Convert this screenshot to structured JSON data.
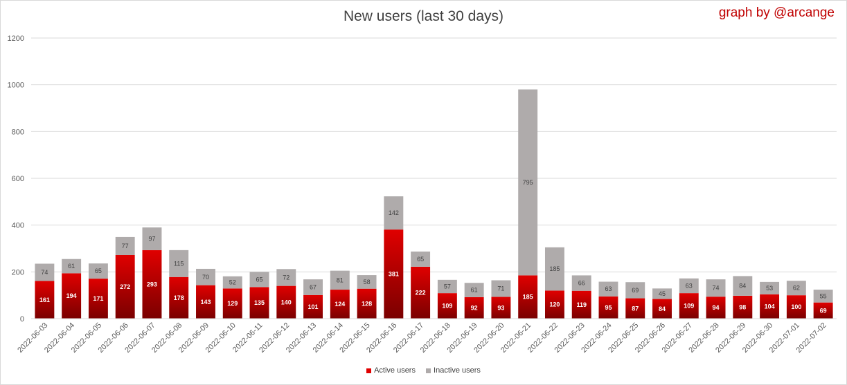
{
  "title": "New users (last 30 days)",
  "credit": "graph by @arcange",
  "colors": {
    "active_top": "#e00000",
    "active_bottom": "#7a0000",
    "inactive": "#afabab",
    "grid": "#d9d9d9"
  },
  "chart_data": {
    "type": "bar",
    "stacked": true,
    "title": "New users (last 30 days)",
    "xlabel": "",
    "ylabel": "",
    "ylim": [
      0,
      1200
    ],
    "yticks": [
      0,
      200,
      400,
      600,
      800,
      1000,
      1200
    ],
    "grid": true,
    "legend_position": "bottom",
    "categories": [
      "2022-06-03",
      "2022-06-04",
      "2022-06-05",
      "2022-06-06",
      "2022-06-07",
      "2022-06-08",
      "2022-06-09",
      "2022-06-10",
      "2022-06-11",
      "2022-06-12",
      "2022-06-13",
      "2022-06-14",
      "2022-06-15",
      "2022-06-16",
      "2022-06-17",
      "2022-06-18",
      "2022-06-19",
      "2022-06-20",
      "2022-06-21",
      "2022-06-22",
      "2022-06-23",
      "2022-06-24",
      "2022-06-25",
      "2022-06-26",
      "2022-06-27",
      "2022-06-28",
      "2022-06-29",
      "2022-06-30",
      "2022-07-01",
      "2022-07-02"
    ],
    "series": [
      {
        "name": "Active users",
        "values": [
          161,
          194,
          171,
          272,
          293,
          178,
          143,
          129,
          135,
          140,
          101,
          124,
          128,
          381,
          222,
          109,
          92,
          93,
          185,
          120,
          119,
          95,
          87,
          84,
          109,
          94,
          98,
          104,
          100,
          69
        ]
      },
      {
        "name": "Inactive users",
        "values": [
          74,
          61,
          65,
          77,
          97,
          115,
          70,
          52,
          65,
          72,
          67,
          81,
          58,
          142,
          65,
          57,
          61,
          71,
          795,
          185,
          66,
          63,
          69,
          45,
          63,
          74,
          84,
          53,
          62,
          55
        ]
      }
    ]
  }
}
